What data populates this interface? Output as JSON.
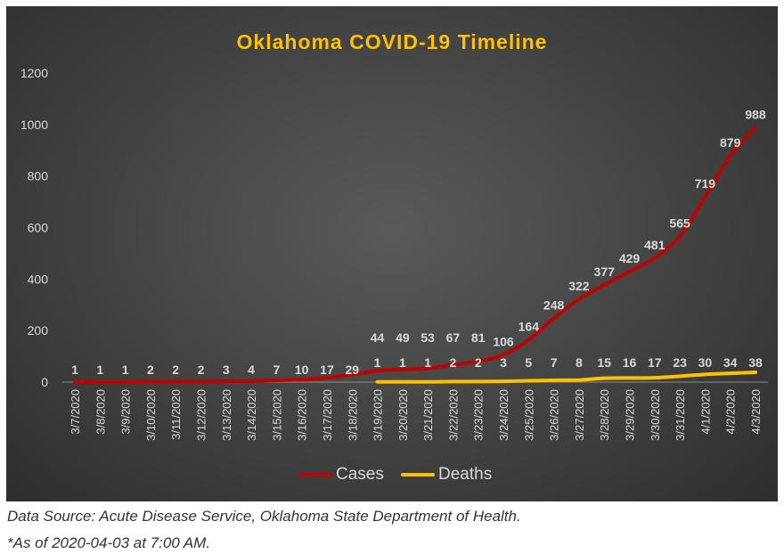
{
  "footnotes": {
    "source": "Data Source: Acute Disease Service, Oklahoma State Department of Health.",
    "as_of": "*As of 2020-04-03 at 7:00 AM."
  },
  "colors": {
    "cases": "#c00000",
    "deaths": "#ffc000",
    "title": "#ffc000",
    "text": "#d9d9d9"
  },
  "chart_data": {
    "type": "line",
    "title": "Oklahoma COVID-19 Timeline",
    "xlabel": "",
    "ylabel": "",
    "ylim": [
      0,
      1200
    ],
    "yticks": [
      0,
      200,
      400,
      600,
      800,
      1000,
      1200
    ],
    "grid": false,
    "legend_position": "bottom",
    "x": [
      "3/7/2020",
      "3/8/2020",
      "3/9/2020",
      "3/10/2020",
      "3/11/2020",
      "3/12/2020",
      "3/13/2020",
      "3/14/2020",
      "3/15/2020",
      "3/16/2020",
      "3/17/2020",
      "3/18/2020",
      "3/19/2020",
      "3/20/2020",
      "3/21/2020",
      "3/22/2020",
      "3/23/2020",
      "3/24/2020",
      "3/25/2020",
      "3/26/2020",
      "3/27/2020",
      "3/28/2020",
      "3/29/2020",
      "3/30/2020",
      "3/31/2020",
      "4/1/2020",
      "4/2/2020",
      "4/3/2020"
    ],
    "series": [
      {
        "name": "Cases",
        "values": [
          1,
          1,
          1,
          2,
          2,
          2,
          3,
          4,
          7,
          10,
          17,
          29,
          44,
          49,
          53,
          67,
          81,
          106,
          164,
          248,
          322,
          377,
          429,
          481,
          565,
          719,
          879,
          988
        ]
      },
      {
        "name": "Deaths",
        "values": [
          null,
          null,
          null,
          null,
          null,
          null,
          null,
          null,
          null,
          null,
          null,
          null,
          1,
          1,
          1,
          2,
          2,
          3,
          5,
          7,
          8,
          15,
          16,
          17,
          23,
          30,
          34,
          38
        ]
      }
    ]
  }
}
